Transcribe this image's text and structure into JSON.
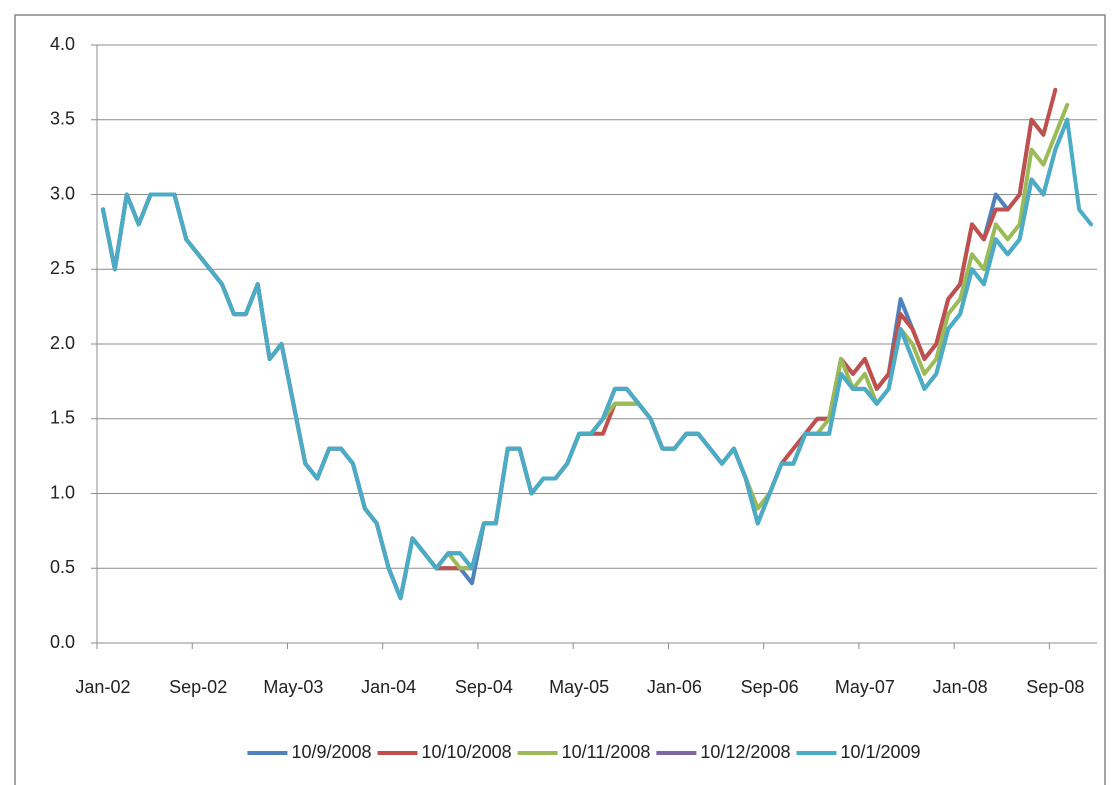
{
  "chart_data": {
    "type": "line",
    "categories": [
      "Jan-02",
      null,
      null,
      null,
      null,
      null,
      null,
      null,
      "Sep-02",
      null,
      null,
      null,
      null,
      null,
      null,
      null,
      "May-03",
      null,
      null,
      null,
      null,
      null,
      null,
      null,
      "Jan-04",
      null,
      null,
      null,
      null,
      null,
      null,
      null,
      "Sep-04",
      null,
      null,
      null,
      null,
      null,
      null,
      null,
      "May-05",
      null,
      null,
      null,
      null,
      null,
      null,
      null,
      "Jan-06",
      null,
      null,
      null,
      null,
      null,
      null,
      null,
      "Sep-06",
      null,
      null,
      null,
      null,
      null,
      null,
      null,
      "May-07",
      null,
      null,
      null,
      null,
      null,
      null,
      null,
      "Jan-08",
      null,
      null,
      null,
      null,
      null,
      null,
      null,
      "Sep-08",
      null,
      null,
      null
    ],
    "ylim": [
      0,
      4
    ],
    "yticks": [
      {
        "value": 0,
        "label": "0.0"
      },
      0.5,
      {
        "value": 1,
        "label": "1.0"
      },
      1.5,
      {
        "value": 2,
        "label": "2.0"
      },
      2.5,
      {
        "value": 3,
        "label": "3.0"
      },
      3.5,
      {
        "value": 4,
        "label": "4.0"
      }
    ],
    "grid": true,
    "legend": "bottom",
    "series": [
      {
        "name": "10/9/2008",
        "color": "#4f81bd",
        "values": [
          2.9,
          2.5,
          3.0,
          2.8,
          3.0,
          3.0,
          3.0,
          2.7,
          2.6,
          2.5,
          2.4,
          2.2,
          2.2,
          2.4,
          1.9,
          2.0,
          1.6,
          1.2,
          1.1,
          1.3,
          1.3,
          1.2,
          0.9,
          0.8,
          0.5,
          0.3,
          0.7,
          0.6,
          0.5,
          0.5,
          0.5,
          0.4,
          0.8,
          0.8,
          1.3,
          1.3,
          1.0,
          1.1,
          1.1,
          1.2,
          1.4,
          1.4,
          1.5,
          1.7,
          1.7,
          1.6,
          1.5,
          1.3,
          1.3,
          1.4,
          1.4,
          1.3,
          1.2,
          1.3,
          1.1,
          0.8,
          1.0,
          1.2,
          1.2,
          1.4,
          1.5,
          1.5,
          1.9,
          1.8,
          1.9,
          1.7,
          1.8,
          2.3,
          2.1,
          1.9,
          2.0,
          2.3,
          2.4,
          2.8,
          2.7,
          3.0,
          2.9,
          3.0,
          3.5,
          3.4,
          null,
          null,
          null,
          null
        ]
      },
      {
        "name": "10/10/2008",
        "color": "#c0504d",
        "values": [
          2.9,
          2.5,
          3.0,
          2.8,
          3.0,
          3.0,
          3.0,
          2.7,
          2.6,
          2.5,
          2.4,
          2.2,
          2.2,
          2.4,
          1.9,
          2.0,
          1.6,
          1.2,
          1.1,
          1.3,
          1.3,
          1.2,
          0.9,
          0.8,
          0.5,
          0.3,
          0.7,
          0.6,
          0.5,
          0.5,
          0.5,
          0.5,
          0.8,
          0.8,
          1.3,
          1.3,
          1.0,
          1.1,
          1.1,
          1.2,
          1.4,
          1.4,
          1.4,
          1.6,
          1.6,
          1.6,
          1.5,
          1.3,
          1.3,
          1.4,
          1.4,
          1.3,
          1.2,
          1.3,
          1.1,
          0.9,
          1.0,
          1.2,
          1.3,
          1.4,
          1.5,
          1.5,
          1.9,
          1.8,
          1.9,
          1.7,
          1.8,
          2.2,
          2.1,
          1.9,
          2.0,
          2.3,
          2.4,
          2.8,
          2.7,
          2.9,
          2.9,
          3.0,
          3.5,
          3.4,
          3.7,
          null,
          null,
          null
        ]
      },
      {
        "name": "10/11/2008",
        "color": "#9bbb59",
        "values": [
          2.9,
          2.5,
          3.0,
          2.8,
          3.0,
          3.0,
          3.0,
          2.7,
          2.6,
          2.5,
          2.4,
          2.2,
          2.2,
          2.4,
          1.9,
          2.0,
          1.6,
          1.2,
          1.1,
          1.3,
          1.3,
          1.2,
          0.9,
          0.8,
          0.5,
          0.3,
          0.7,
          0.6,
          0.5,
          0.6,
          0.5,
          0.5,
          0.8,
          0.8,
          1.3,
          1.3,
          1.0,
          1.1,
          1.1,
          1.2,
          1.4,
          1.4,
          1.5,
          1.6,
          1.6,
          1.6,
          1.5,
          1.3,
          1.3,
          1.4,
          1.4,
          1.3,
          1.2,
          1.3,
          1.1,
          0.9,
          1.0,
          1.2,
          1.2,
          1.4,
          1.4,
          1.5,
          1.9,
          1.7,
          1.8,
          1.6,
          1.7,
          2.1,
          2.0,
          1.8,
          1.9,
          2.2,
          2.3,
          2.6,
          2.5,
          2.8,
          2.7,
          2.8,
          3.3,
          3.2,
          3.4,
          3.6,
          null,
          null
        ]
      },
      {
        "name": "10/12/2008",
        "color": "#8064a2",
        "values": [
          2.9,
          2.5,
          3.0,
          2.8,
          3.0,
          3.0,
          3.0,
          2.7,
          2.6,
          2.5,
          2.4,
          2.2,
          2.2,
          2.4,
          1.9,
          2.0,
          1.6,
          1.2,
          1.1,
          1.3,
          1.3,
          1.2,
          0.9,
          0.8,
          0.5,
          0.3,
          0.7,
          0.6,
          0.5,
          0.6,
          0.6,
          0.5,
          0.8,
          0.8,
          1.3,
          1.3,
          1.0,
          1.1,
          1.1,
          1.2,
          1.4,
          1.4,
          1.5,
          1.7,
          1.7,
          1.6,
          1.5,
          1.3,
          1.3,
          1.4,
          1.4,
          1.3,
          1.2,
          1.3,
          1.1,
          0.8,
          1.0,
          1.2,
          1.2,
          1.4,
          1.4,
          1.4,
          1.8,
          1.7,
          1.7,
          1.6,
          1.7,
          2.1,
          1.9,
          1.7,
          1.8,
          2.1,
          2.2,
          2.5,
          2.4,
          2.7,
          2.6,
          2.7,
          3.1,
          3.0,
          3.3,
          3.5,
          null,
          null
        ]
      },
      {
        "name": "10/1/2009",
        "color": "#4bacc6",
        "values": [
          2.9,
          2.5,
          3.0,
          2.8,
          3.0,
          3.0,
          3.0,
          2.7,
          2.6,
          2.5,
          2.4,
          2.2,
          2.2,
          2.4,
          1.9,
          2.0,
          1.6,
          1.2,
          1.1,
          1.3,
          1.3,
          1.2,
          0.9,
          0.8,
          0.5,
          0.3,
          0.7,
          0.6,
          0.5,
          0.6,
          0.6,
          0.5,
          0.8,
          0.8,
          1.3,
          1.3,
          1.0,
          1.1,
          1.1,
          1.2,
          1.4,
          1.4,
          1.5,
          1.7,
          1.7,
          1.6,
          1.5,
          1.3,
          1.3,
          1.4,
          1.4,
          1.3,
          1.2,
          1.3,
          1.1,
          0.8,
          1.0,
          1.2,
          1.2,
          1.4,
          1.4,
          1.4,
          1.8,
          1.7,
          1.7,
          1.6,
          1.7,
          2.1,
          1.9,
          1.7,
          1.8,
          2.1,
          2.2,
          2.5,
          2.4,
          2.7,
          2.6,
          2.7,
          3.1,
          3.0,
          3.3,
          3.5,
          2.9,
          2.8
        ]
      }
    ]
  }
}
